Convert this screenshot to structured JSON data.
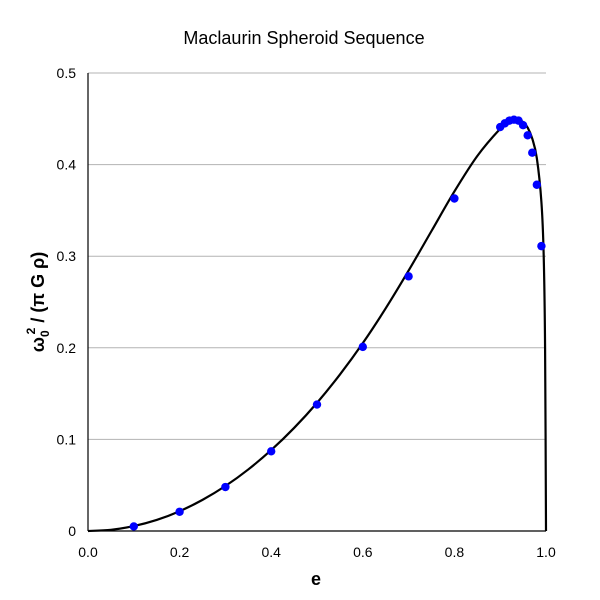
{
  "chart_data": {
    "type": "line",
    "title": "Maclaurin Spheroid Sequence",
    "xlabel": "e",
    "ylabel": {
      "omega": "ω",
      "sub": "0",
      "sup": "2",
      "rest": " / (π G ρ)"
    },
    "xlim": [
      0,
      1
    ],
    "ylim": [
      0,
      0.5
    ],
    "x_ticks": [
      "0.0",
      "0.2",
      "0.4",
      "0.6",
      "0.8",
      "1.0"
    ],
    "y_ticks": [
      "0",
      "0.1",
      "0.2",
      "0.3",
      "0.4",
      "0.5"
    ],
    "grid": "horizontal",
    "series": [
      {
        "type": "line",
        "color": "#000000",
        "x": [
          0,
          0.05,
          0.1,
          0.15,
          0.2,
          0.25,
          0.3,
          0.35,
          0.4,
          0.45,
          0.5,
          0.55,
          0.6,
          0.65,
          0.7,
          0.75,
          0.8,
          0.85,
          0.9,
          0.92,
          0.93,
          0.94,
          0.95,
          0.96,
          0.97,
          0.98,
          0.99,
          0.995,
          0.998,
          1.0
        ],
        "y": [
          0,
          0.0013,
          0.0054,
          0.0121,
          0.0216,
          0.034,
          0.0491,
          0.0672,
          0.0883,
          0.1125,
          0.1399,
          0.1708,
          0.2051,
          0.2431,
          0.2843,
          0.3275,
          0.3707,
          0.4094,
          0.4391,
          0.4469,
          0.4489,
          0.449,
          0.4465,
          0.4403,
          0.4284,
          0.407,
          0.359,
          0.3,
          0.2,
          0
        ]
      },
      {
        "type": "scatter",
        "color": "#0000ff",
        "x": [
          0.1,
          0.2,
          0.3,
          0.4,
          0.5,
          0.6,
          0.7,
          0.8,
          0.9,
          0.91,
          0.92,
          0.93,
          0.94,
          0.95,
          0.96,
          0.97,
          0.98,
          0.99
        ],
        "y": [
          0.005,
          0.021,
          0.048,
          0.087,
          0.138,
          0.201,
          0.278,
          0.363,
          0.441,
          0.445,
          0.448,
          0.449,
          0.448,
          0.443,
          0.432,
          0.413,
          0.378,
          0.311
        ]
      }
    ]
  }
}
